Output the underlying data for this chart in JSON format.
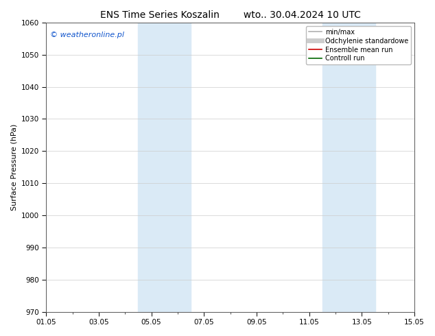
{
  "title_left": "ENS Time Series Koszalin",
  "title_right": "wto.. 30.04.2024 10 UTC",
  "ylabel": "Surface Pressure (hPa)",
  "ylim": [
    970,
    1060
  ],
  "yticks": [
    970,
    980,
    990,
    1000,
    1010,
    1020,
    1030,
    1040,
    1050,
    1060
  ],
  "xlim": [
    0,
    14
  ],
  "xtick_labels": [
    "01.05",
    "03.05",
    "05.05",
    "07.05",
    "09.05",
    "11.05",
    "13.05",
    "15.05"
  ],
  "xtick_positions": [
    0,
    2,
    4,
    6,
    8,
    10,
    12,
    14
  ],
  "shaded_regions": [
    {
      "start": 3.5,
      "end": 5.5,
      "color": "#daeaf6"
    },
    {
      "start": 10.5,
      "end": 12.5,
      "color": "#daeaf6"
    }
  ],
  "watermark": "© weatheronline.pl",
  "legend_items": [
    {
      "label": "min/max",
      "color": "#b0b0b0",
      "lw": 1.2,
      "style": "-"
    },
    {
      "label": "Odchylenie standardowe",
      "color": "#cccccc",
      "lw": 5,
      "style": "-"
    },
    {
      "label": "Ensemble mean run",
      "color": "#cc0000",
      "lw": 1.2,
      "style": "-"
    },
    {
      "label": "Controll run",
      "color": "#006600",
      "lw": 1.2,
      "style": "-"
    }
  ],
  "background_color": "#ffffff",
  "plot_bg_color": "#ffffff",
  "grid_color": "#cccccc",
  "title_fontsize": 10,
  "axis_label_fontsize": 8,
  "tick_fontsize": 7.5,
  "legend_fontsize": 7,
  "watermark_color": "#1155cc",
  "watermark_fontsize": 8
}
